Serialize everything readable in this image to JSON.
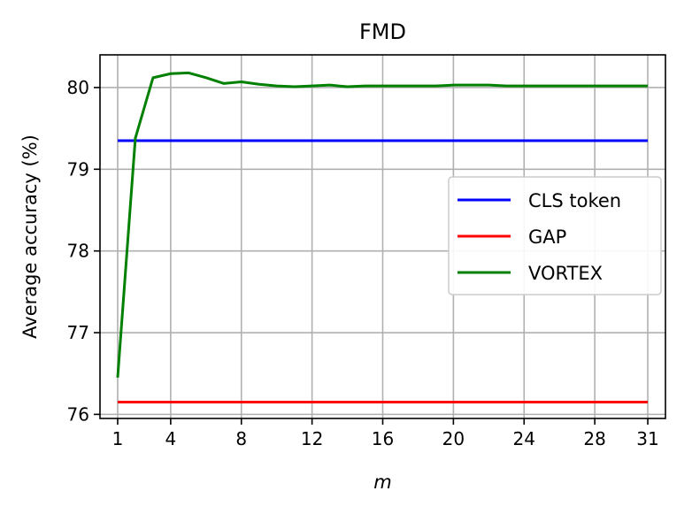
{
  "chart_data": {
    "type": "line",
    "title": "FMD",
    "xlabel": "m",
    "ylabel": "Average accuracy (%)",
    "xlim": [
      0.0,
      32.0
    ],
    "ylim": [
      75.95,
      80.4
    ],
    "xticks": [
      1,
      4,
      8,
      12,
      16,
      20,
      24,
      28,
      31
    ],
    "yticks": [
      76,
      77,
      78,
      79,
      80
    ],
    "grid": true,
    "legend_position": "center-right",
    "series": [
      {
        "name": "CLS token",
        "color": "#0000ff",
        "x": [
          1,
          31
        ],
        "y": [
          79.35,
          79.35
        ]
      },
      {
        "name": "GAP",
        "color": "#ff0000",
        "x": [
          1,
          31
        ],
        "y": [
          76.15,
          76.15
        ]
      },
      {
        "name": "VORTEX",
        "color": "#008000",
        "x": [
          1,
          2,
          3,
          4,
          5,
          6,
          7,
          8,
          9,
          10,
          11,
          12,
          13,
          14,
          15,
          16,
          17,
          18,
          19,
          20,
          21,
          22,
          23,
          24,
          25,
          26,
          27,
          28,
          29,
          30,
          31
        ],
        "y": [
          76.45,
          79.38,
          80.12,
          80.17,
          80.18,
          80.12,
          80.05,
          80.07,
          80.04,
          80.02,
          80.01,
          80.02,
          80.03,
          80.01,
          80.02,
          80.02,
          80.02,
          80.02,
          80.02,
          80.03,
          80.03,
          80.03,
          80.02,
          80.02,
          80.02,
          80.02,
          80.02,
          80.02,
          80.02,
          80.02,
          80.02
        ]
      }
    ]
  }
}
